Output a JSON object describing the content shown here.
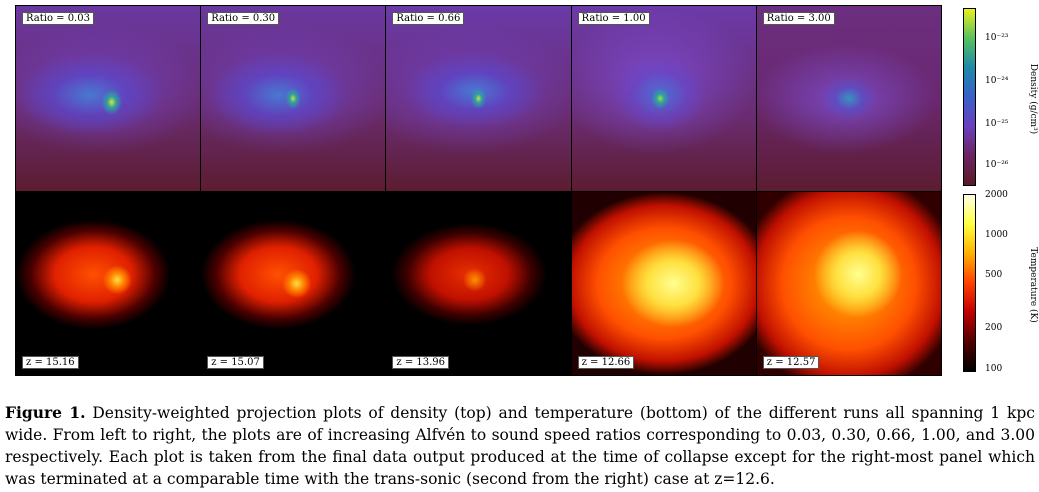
{
  "panels": [
    {
      "ratio_label": "Ratio = 0.03",
      "z_label": "z = 15.16"
    },
    {
      "ratio_label": "Ratio = 0.30",
      "z_label": "z = 15.07"
    },
    {
      "ratio_label": "Ratio = 0.66",
      "z_label": "z = 13.96"
    },
    {
      "ratio_label": "Ratio = 1.00",
      "z_label": "z = 12.66"
    },
    {
      "ratio_label": "Ratio = 3.00",
      "z_label": "z = 12.57"
    }
  ],
  "density_colorbar": {
    "title": "Density (g/cm³)",
    "ticks": [
      "10⁻²³",
      "10⁻²⁴",
      "10⁻²⁵",
      "10⁻²⁶"
    ],
    "colors": [
      "#e8f020",
      "#58c060",
      "#1e8aa8",
      "#3a60c8",
      "#6a40c0",
      "#6a2560",
      "#5a1a28"
    ]
  },
  "temperature_colorbar": {
    "title": "Temperature (K)",
    "ticks": [
      "2000",
      "1000",
      "500",
      "200",
      "100"
    ],
    "colors": [
      "#ffffe8",
      "#ffff40",
      "#ffb000",
      "#ff4000",
      "#c00000",
      "#500000",
      "#000000"
    ]
  },
  "caption": {
    "label": "Figure 1.",
    "text": "Density-weighted projection plots of density (top) and temperature (bottom) of the different runs all spanning 1 kpc wide. From left to right, the plots are of increasing Alfvén to sound speed ratios corresponding to 0.03, 0.30, 0.66, 1.00, and 3.00 respectively. Each plot is taken from the final data output produced at the time of collapse except for the right-most panel which was terminated at a comparable time with the trans-sonic (second from the right) case at z=12.6."
  }
}
